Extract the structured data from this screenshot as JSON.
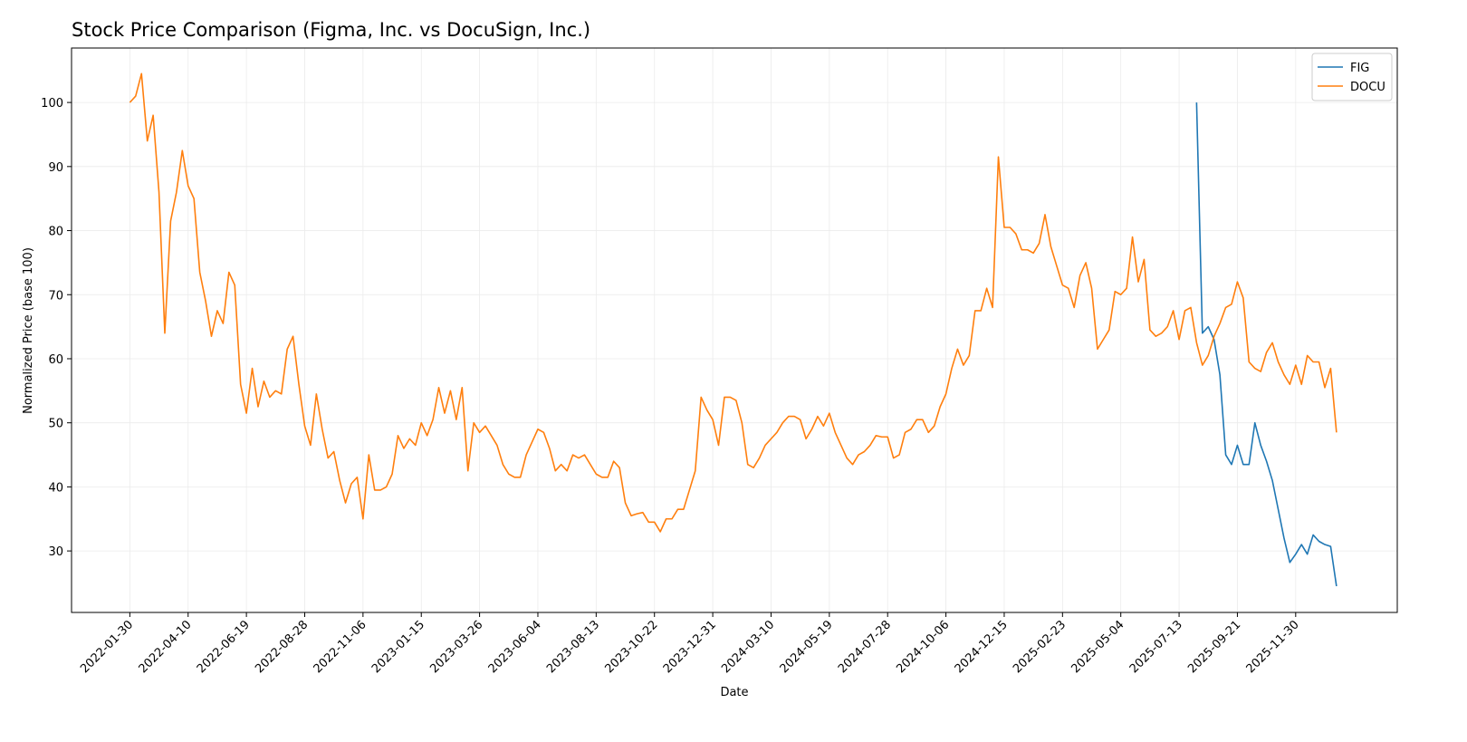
{
  "chart_data": {
    "type": "line",
    "title": "Stock Price Comparison (Figma, Inc. vs DocuSign, Inc.)",
    "xlabel": "Date",
    "ylabel": "Normalized Price (base 100)",
    "xlim": [
      "2021-11-21",
      "2026-04-01"
    ],
    "ylim": [
      20.4,
      108.5
    ],
    "xticks": [
      "2022-01-30",
      "2022-04-10",
      "2022-06-19",
      "2022-08-28",
      "2022-11-06",
      "2023-01-15",
      "2023-03-26",
      "2023-06-04",
      "2023-08-13",
      "2023-10-22",
      "2023-12-31",
      "2024-03-10",
      "2024-05-19",
      "2024-07-28",
      "2024-10-06",
      "2024-12-15",
      "2025-02-23",
      "2025-05-04",
      "2025-07-13",
      "2025-09-21",
      "2025-11-30"
    ],
    "yticks": [
      30,
      40,
      50,
      60,
      70,
      80,
      90,
      100
    ],
    "grid": true,
    "legend": "upper right",
    "series": [
      {
        "name": "FIG",
        "color": "#1f77b4",
        "x": [
          "2025-08-03",
          "2025-08-10",
          "2025-08-17",
          "2025-08-24",
          "2025-08-31",
          "2025-09-07",
          "2025-09-14",
          "2025-09-21",
          "2025-09-28",
          "2025-10-05",
          "2025-10-12",
          "2025-10-19",
          "2025-10-26",
          "2025-11-02",
          "2025-11-09",
          "2025-11-16",
          "2025-11-23",
          "2025-11-30",
          "2025-12-07",
          "2025-12-14",
          "2025-12-21",
          "2025-12-28",
          "2026-01-04",
          "2026-01-11",
          "2026-01-18"
        ],
        "values": [
          100,
          64,
          65,
          63,
          57.5,
          45,
          43.5,
          46.5,
          43.5,
          43.5,
          50,
          46.5,
          44,
          41,
          36.5,
          32,
          28.2,
          29.5,
          31,
          29.5,
          32.5,
          31.5,
          31,
          30.7,
          24.5
        ]
      },
      {
        "name": "DOCU",
        "color": "#ff7f0e",
        "x": [
          "2022-01-30",
          "2022-02-06",
          "2022-02-13",
          "2022-02-20",
          "2022-02-27",
          "2022-03-06",
          "2022-03-13",
          "2022-03-20",
          "2022-03-27",
          "2022-04-03",
          "2022-04-10",
          "2022-04-17",
          "2022-04-24",
          "2022-05-01",
          "2022-05-08",
          "2022-05-15",
          "2022-05-22",
          "2022-05-29",
          "2022-06-05",
          "2022-06-12",
          "2022-06-19",
          "2022-06-26",
          "2022-07-03",
          "2022-07-10",
          "2022-07-17",
          "2022-07-24",
          "2022-07-31",
          "2022-08-07",
          "2022-08-14",
          "2022-08-21",
          "2022-08-28",
          "2022-09-04",
          "2022-09-11",
          "2022-09-18",
          "2022-09-25",
          "2022-10-02",
          "2022-10-09",
          "2022-10-16",
          "2022-10-23",
          "2022-10-30",
          "2022-11-06",
          "2022-11-13",
          "2022-11-20",
          "2022-11-27",
          "2022-12-04",
          "2022-12-11",
          "2022-12-18",
          "2022-12-25",
          "2023-01-01",
          "2023-01-08",
          "2023-01-15",
          "2023-01-22",
          "2023-01-29",
          "2023-02-05",
          "2023-02-12",
          "2023-02-19",
          "2023-02-26",
          "2023-03-05",
          "2023-03-12",
          "2023-03-19",
          "2023-03-26",
          "2023-04-02",
          "2023-04-09",
          "2023-04-16",
          "2023-04-23",
          "2023-04-30",
          "2023-05-07",
          "2023-05-14",
          "2023-05-21",
          "2023-05-28",
          "2023-06-04",
          "2023-06-11",
          "2023-06-18",
          "2023-06-25",
          "2023-07-02",
          "2023-07-09",
          "2023-07-16",
          "2023-07-23",
          "2023-07-30",
          "2023-08-06",
          "2023-08-13",
          "2023-08-20",
          "2023-08-27",
          "2023-09-03",
          "2023-09-10",
          "2023-09-17",
          "2023-09-24",
          "2023-10-01",
          "2023-10-08",
          "2023-10-15",
          "2023-10-22",
          "2023-10-29",
          "2023-11-05",
          "2023-11-12",
          "2023-11-19",
          "2023-11-26",
          "2023-12-03",
          "2023-12-10",
          "2023-12-17",
          "2023-12-24",
          "2023-12-31",
          "2024-01-07",
          "2024-01-14",
          "2024-01-21",
          "2024-01-28",
          "2024-02-04",
          "2024-02-11",
          "2024-02-18",
          "2024-02-25",
          "2024-03-03",
          "2024-03-10",
          "2024-03-17",
          "2024-03-24",
          "2024-03-31",
          "2024-04-07",
          "2024-04-14",
          "2024-04-21",
          "2024-04-28",
          "2024-05-05",
          "2024-05-12",
          "2024-05-19",
          "2024-05-26",
          "2024-06-02",
          "2024-06-09",
          "2024-06-16",
          "2024-06-23",
          "2024-06-30",
          "2024-07-07",
          "2024-07-14",
          "2024-07-21",
          "2024-07-28",
          "2024-08-04",
          "2024-08-11",
          "2024-08-18",
          "2024-08-25",
          "2024-09-01",
          "2024-09-08",
          "2024-09-15",
          "2024-09-22",
          "2024-09-29",
          "2024-10-06",
          "2024-10-13",
          "2024-10-20",
          "2024-10-27",
          "2024-11-03",
          "2024-11-10",
          "2024-11-17",
          "2024-11-24",
          "2024-12-01",
          "2024-12-08",
          "2024-12-15",
          "2024-12-22",
          "2024-12-29",
          "2025-01-05",
          "2025-01-12",
          "2025-01-19",
          "2025-01-26",
          "2025-02-02",
          "2025-02-09",
          "2025-02-16",
          "2025-02-23",
          "2025-03-02",
          "2025-03-09",
          "2025-03-16",
          "2025-03-23",
          "2025-03-30",
          "2025-04-06",
          "2025-04-13",
          "2025-04-20",
          "2025-04-27",
          "2025-05-04",
          "2025-05-11",
          "2025-05-18",
          "2025-05-25",
          "2025-06-01",
          "2025-06-08",
          "2025-06-15",
          "2025-06-22",
          "2025-06-29",
          "2025-07-06",
          "2025-07-13",
          "2025-07-20",
          "2025-07-27",
          "2025-08-03",
          "2025-08-10",
          "2025-08-17",
          "2025-08-24",
          "2025-08-31",
          "2025-09-07",
          "2025-09-14",
          "2025-09-21",
          "2025-09-28",
          "2025-10-05",
          "2025-10-12",
          "2025-10-19",
          "2025-10-26",
          "2025-11-02",
          "2025-11-09",
          "2025-11-16",
          "2025-11-23",
          "2025-11-30",
          "2025-12-07",
          "2025-12-14",
          "2025-12-21",
          "2025-12-28",
          "2026-01-04",
          "2026-01-11",
          "2026-01-18"
        ],
        "values": [
          100,
          101,
          104.5,
          94,
          98,
          86,
          64,
          81.5,
          86,
          92.5,
          87,
          85,
          73.5,
          69,
          63.5,
          67.5,
          65.5,
          73.5,
          71.5,
          56,
          51.5,
          58.5,
          52.5,
          56.5,
          54,
          55,
          54.5,
          61.5,
          63.5,
          56,
          49.5,
          46.5,
          54.5,
          49,
          44.5,
          45.5,
          41,
          37.5,
          40.5,
          41.5,
          35,
          45,
          39.5,
          39.5,
          40,
          42,
          48,
          46,
          47.5,
          46.5,
          50,
          48,
          50.5,
          55.5,
          51.5,
          55,
          50.5,
          55.5,
          42.5,
          50,
          48.5,
          49.5,
          48,
          46.5,
          43.5,
          42,
          41.5,
          41.5,
          45,
          47,
          49,
          48.5,
          46,
          42.5,
          43.5,
          42.5,
          45,
          44.5,
          45,
          43.5,
          42,
          41.5,
          41.5,
          44,
          43,
          37.5,
          35.5,
          35.8,
          36,
          34.5,
          34.5,
          33,
          35,
          35,
          36.5,
          36.5,
          39.5,
          42.5,
          54,
          52,
          50.5,
          46.5,
          54,
          54,
          53.5,
          50,
          43.5,
          43,
          44.5,
          46.5,
          47.5,
          48.5,
          50,
          51,
          51,
          50.5,
          47.5,
          49,
          51,
          49.5,
          51.5,
          48.5,
          46.5,
          44.5,
          43.5,
          45,
          45.5,
          46.5,
          48,
          47.8,
          47.8,
          44.5,
          45,
          48.5,
          49,
          50.5,
          50.5,
          48.5,
          49.5,
          52.5,
          54.5,
          58.5,
          61.5,
          59,
          60.5,
          67.5,
          67.5,
          71,
          68,
          91.5,
          80.5,
          80.5,
          79.5,
          77,
          77,
          76.5,
          78,
          82.5,
          77.5,
          74.5,
          71.5,
          71,
          68,
          73,
          75,
          71,
          61.5,
          63,
          64.5,
          70.5,
          70,
          71,
          79,
          72,
          75.5,
          64.5,
          63.5,
          64,
          65,
          67.5,
          63,
          67.5,
          68,
          62.5,
          59,
          60.5,
          63.5,
          65.5,
          68,
          68.5,
          72,
          69.5,
          59.5,
          58.5,
          58,
          61,
          62.5,
          59.5,
          57.5,
          56,
          59,
          56,
          60.5,
          59.5,
          59.5,
          55.5,
          58.5,
          48.5
        ]
      }
    ]
  }
}
